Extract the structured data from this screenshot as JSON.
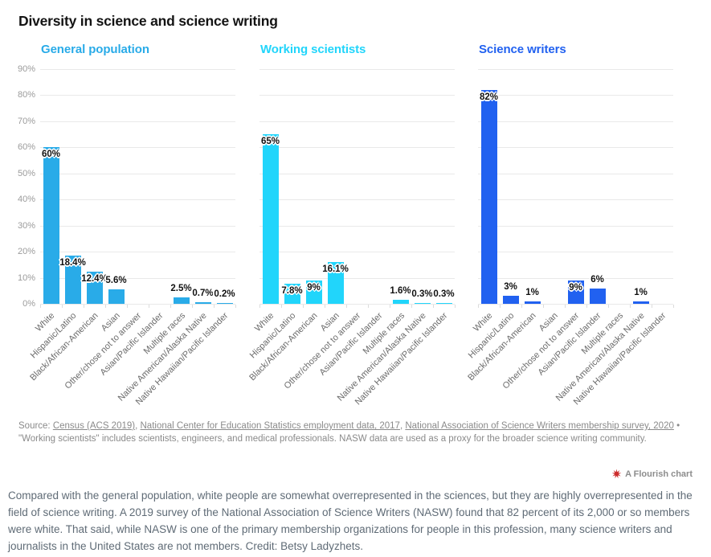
{
  "header": {
    "title": "Diversity in science and science writing"
  },
  "source_note": {
    "prefix": "Source: ",
    "segments": [
      {
        "text": "Census (ACS 2019)",
        "link": true
      },
      {
        "text": ", ",
        "link": false
      },
      {
        "text": "National Center for Education Statistics employment data, 2017",
        "link": true
      },
      {
        "text": ", ",
        "link": false
      },
      {
        "text": "National Association of Science Writers membership survey, 2020",
        "link": true
      },
      {
        "text": " • \"Working scientists\" includes scientists, engineers, and medical professionals. NASW data are used as a proxy for the broader science writing community.",
        "link": false
      }
    ]
  },
  "attribution": {
    "label": "A Flourish chart",
    "icon_color": "#cc2b2b"
  },
  "caption": {
    "text": "Compared with the general population, white people are somewhat overrepresented in the sciences, but they are highly overrepresented in the field of science writing. A 2019 survey of the National Association of Science Writers (NASW) found that 82 percent of its 2,000 or so members were white. That said, while NASW is one of the primary membership organizations for people in this profession, many science writers and journalists in the United States are not members. Credit: Betsy Ladyzhets."
  },
  "chart_data": [
    {
      "type": "bar",
      "title": "General population",
      "color": "#29abe8",
      "categories": [
        "White",
        "Hispanic/Latino",
        "Black/African-American",
        "Asian",
        "Other/chose not to answer",
        "Asian/Pacific Islander",
        "Multiple races",
        "Native American/Alaska Native",
        "Native Hawaiian/Pacific Islander"
      ],
      "values": [
        60,
        18.4,
        12.4,
        5.6,
        null,
        null,
        2.5,
        0.7,
        0.2
      ],
      "labels": [
        "60%",
        "18.4%",
        "12.4%",
        "5.6%",
        null,
        null,
        "2.5%",
        "0.7%",
        "0.2%"
      ],
      "xlabel": "",
      "ylabel": "",
      "ylim": [
        0,
        90
      ],
      "yticks": [
        "0%",
        "10%",
        "20%",
        "30%",
        "40%",
        "50%",
        "60%",
        "70%",
        "80%",
        "90%"
      ],
      "grid": true,
      "y_axis_labels_visible": true
    },
    {
      "type": "bar",
      "title": "Working scientists",
      "color": "#21d5fb",
      "categories": [
        "White",
        "Hispanic/Latino",
        "Black/African-American",
        "Asian",
        "Other/chose not to answer",
        "Asian/Pacific Islander",
        "Multiple races",
        "Native American/Alaska Native",
        "Native Hawaiian/Pacific Islander"
      ],
      "values": [
        65,
        7.8,
        9,
        16.1,
        null,
        null,
        1.6,
        0.3,
        0.3
      ],
      "labels": [
        "65%",
        "7.8%",
        "9%",
        "16.1%",
        null,
        null,
        "1.6%",
        "0.3%",
        "0.3%"
      ],
      "xlabel": "",
      "ylabel": "",
      "ylim": [
        0,
        90
      ],
      "yticks": [
        "0%",
        "10%",
        "20%",
        "30%",
        "40%",
        "50%",
        "60%",
        "70%",
        "80%",
        "90%"
      ],
      "grid": true,
      "y_axis_labels_visible": false
    },
    {
      "type": "bar",
      "title": "Science writers",
      "color": "#2161f0",
      "categories": [
        "White",
        "Hispanic/Latino",
        "Black/African-American",
        "Asian",
        "Other/chose not to answer",
        "Asian/Pacific Islander",
        "Multiple races",
        "Native American/Alaska Native",
        "Native Hawaiian/Pacific Islander"
      ],
      "values": [
        82,
        3,
        1,
        null,
        9,
        6,
        null,
        1,
        null
      ],
      "labels": [
        "82%",
        "3%",
        "1%",
        null,
        "9%",
        "6%",
        null,
        "1%",
        null
      ],
      "xlabel": "",
      "ylabel": "",
      "ylim": [
        0,
        90
      ],
      "yticks": [
        "0%",
        "10%",
        "20%",
        "30%",
        "40%",
        "50%",
        "60%",
        "70%",
        "80%",
        "90%"
      ],
      "grid": true,
      "y_axis_labels_visible": false
    }
  ]
}
